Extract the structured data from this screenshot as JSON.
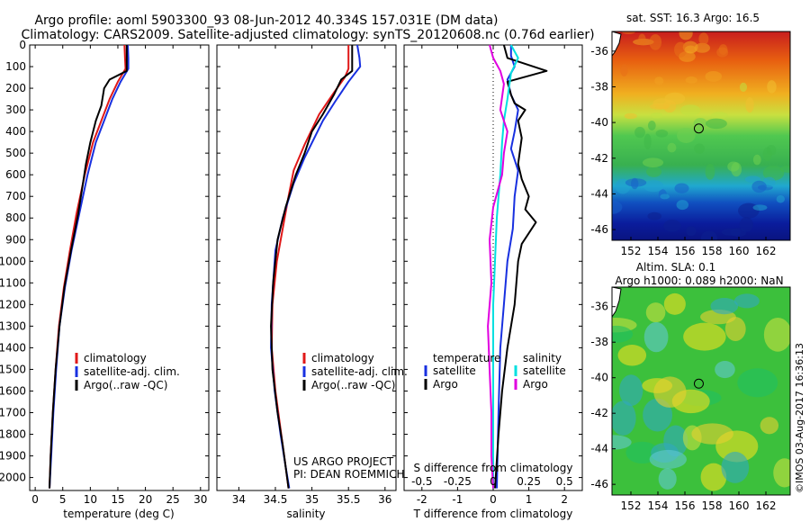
{
  "header": {
    "title_line1": "Argo profile: aoml 5903300_93 08-Jun-2012 40.334S 157.031E (DM data)",
    "title_line2": "Climatology: CARS2009. Satellite-adjusted climatology: synTS_20120608.nc (0.76d earlier)"
  },
  "colors": {
    "climatology": "#e01818",
    "satellite": "#1830e0",
    "argo": "#000000",
    "sat_s": "#00e0e0",
    "argo_s": "#e000e0"
  },
  "chart_data": [
    {
      "type": "line",
      "id": "temperature",
      "xlabel": "temperature (deg C)",
      "ylabel": "",
      "xlim": [
        -1,
        31.5
      ],
      "ylim": [
        2060,
        0
      ],
      "xticks": [
        "0",
        "5",
        "10",
        "15",
        "20",
        "25",
        "30"
      ],
      "xtick_values": [
        0,
        5,
        10,
        15,
        20,
        25,
        30
      ],
      "yticks": [
        0,
        100,
        200,
        300,
        400,
        500,
        600,
        700,
        800,
        900,
        1000,
        1100,
        1200,
        1300,
        1400,
        1500,
        1600,
        1700,
        1800,
        1900,
        2000
      ],
      "legend": [
        "climatology",
        "satellite-adj. clim.",
        "Argo(..raw -QC)"
      ],
      "legend_position": "lower-right",
      "series": [
        {
          "name": "climatology",
          "color": "#e01818",
          "points": [
            [
              16.2,
              0
            ],
            [
              16.3,
              60
            ],
            [
              16.4,
              110
            ],
            [
              15,
              170
            ],
            [
              13.5,
              250
            ],
            [
              12,
              350
            ],
            [
              10.5,
              450
            ],
            [
              9,
              600
            ],
            [
              7.5,
              780
            ],
            [
              6.3,
              950
            ],
            [
              5.2,
              1120
            ],
            [
              4.3,
              1300
            ],
            [
              3.7,
              1500
            ],
            [
              3.2,
              1700
            ],
            [
              2.8,
              1900
            ],
            [
              2.6,
              2050
            ]
          ]
        },
        {
          "name": "satellite-adj. clim.",
          "color": "#1830e0",
          "points": [
            [
              16.8,
              0
            ],
            [
              16.9,
              60
            ],
            [
              16.9,
              110
            ],
            [
              15.5,
              170
            ],
            [
              14,
              250
            ],
            [
              12.5,
              350
            ],
            [
              11,
              450
            ],
            [
              9.5,
              600
            ],
            [
              8,
              780
            ],
            [
              6.6,
              950
            ],
            [
              5.4,
              1120
            ],
            [
              4.4,
              1300
            ],
            [
              3.8,
              1500
            ],
            [
              3.3,
              1700
            ],
            [
              2.9,
              1900
            ],
            [
              2.6,
              2050
            ]
          ]
        },
        {
          "name": "Argo(..raw -QC)",
          "color": "#000000",
          "points": [
            [
              16.6,
              0
            ],
            [
              16.6,
              60
            ],
            [
              16.6,
              120
            ],
            [
              13.5,
              160
            ],
            [
              12.5,
              200
            ],
            [
              12,
              280
            ],
            [
              11,
              350
            ],
            [
              10,
              450
            ],
            [
              9.2,
              550
            ],
            [
              8.6,
              650
            ],
            [
              7.8,
              780
            ],
            [
              6.5,
              950
            ],
            [
              5.3,
              1120
            ],
            [
              4.4,
              1300
            ],
            [
              3.7,
              1500
            ],
            [
              3.2,
              1700
            ],
            [
              2.8,
              1900
            ],
            [
              2.6,
              2050
            ]
          ]
        }
      ]
    },
    {
      "type": "line",
      "id": "salinity",
      "xlabel": "salinity",
      "xlim": [
        33.7,
        36.15
      ],
      "ylim": [
        2060,
        0
      ],
      "xticks": [
        "34",
        "34.5",
        "35",
        "35.5",
        "36"
      ],
      "xtick_values": [
        34,
        34.5,
        35,
        35.5,
        36
      ],
      "legend": [
        "climatology",
        "satellite-adj. clim.",
        "Argo(..raw -QC)"
      ],
      "legend_position": "lower-right",
      "series": [
        {
          "name": "climatology",
          "color": "#e01818",
          "points": [
            [
              35.5,
              0
            ],
            [
              35.5,
              110
            ],
            [
              35.45,
              150
            ],
            [
              35.3,
              220
            ],
            [
              35.1,
              320
            ],
            [
              34.9,
              460
            ],
            [
              34.75,
              580
            ],
            [
              34.68,
              700
            ],
            [
              34.6,
              850
            ],
            [
              34.52,
              1000
            ],
            [
              34.46,
              1200
            ],
            [
              34.45,
              1400
            ],
            [
              34.5,
              1600
            ],
            [
              34.58,
              1800
            ],
            [
              34.64,
              1950
            ],
            [
              34.68,
              2050
            ]
          ]
        },
        {
          "name": "satellite-adj. clim.",
          "color": "#1830e0",
          "points": [
            [
              35.62,
              0
            ],
            [
              35.65,
              60
            ],
            [
              35.66,
              100
            ],
            [
              35.5,
              170
            ],
            [
              35.32,
              260
            ],
            [
              35.15,
              350
            ],
            [
              34.9,
              520
            ],
            [
              34.75,
              640
            ],
            [
              34.6,
              800
            ],
            [
              34.5,
              950
            ],
            [
              34.45,
              1200
            ],
            [
              34.44,
              1400
            ],
            [
              34.49,
              1600
            ],
            [
              34.57,
              1800
            ],
            [
              34.64,
              1950
            ],
            [
              34.69,
              2050
            ]
          ]
        },
        {
          "name": "Argo(..raw -QC)",
          "color": "#000000",
          "points": [
            [
              35.55,
              0
            ],
            [
              35.55,
              120
            ],
            [
              35.4,
              160
            ],
            [
              35.3,
              230
            ],
            [
              35.15,
              320
            ],
            [
              35.0,
              400
            ],
            [
              34.9,
              500
            ],
            [
              34.78,
              600
            ],
            [
              34.64,
              750
            ],
            [
              34.53,
              900
            ],
            [
              34.47,
              1100
            ],
            [
              34.44,
              1300
            ],
            [
              34.46,
              1500
            ],
            [
              34.53,
              1700
            ],
            [
              34.6,
              1850
            ],
            [
              34.66,
              2000
            ],
            [
              34.68,
              2050
            ]
          ]
        }
      ]
    },
    {
      "type": "line",
      "id": "difference",
      "xlabel": "T difference from climatology",
      "xlabel_top": "S difference from climatology",
      "xlim": [
        -2.5,
        2.5
      ],
      "ylim": [
        2060,
        0
      ],
      "xticks": [
        "-2",
        "-1",
        "0",
        "1",
        "2"
      ],
      "xtick_values": [
        -2,
        -1,
        0,
        1,
        2
      ],
      "s_ticks": [
        "-0.5",
        "-0.25",
        "0",
        "0.25",
        "0.5"
      ],
      "s_tick_values": [
        -2,
        -1,
        0,
        1,
        2
      ],
      "legend_left_title": "temperature",
      "legend_right_title": "salinity",
      "legend_left": [
        "satellite",
        "Argo"
      ],
      "legend_right": [
        "satellite",
        "Argo"
      ],
      "series": [
        {
          "name": "T satellite",
          "color": "#1830e0",
          "points": [
            [
              0.5,
              0
            ],
            [
              0.5,
              50
            ],
            [
              0.6,
              100
            ],
            [
              0.4,
              160
            ],
            [
              0.5,
              230
            ],
            [
              0.7,
              300
            ],
            [
              0.6,
              400
            ],
            [
              0.5,
              480
            ],
            [
              0.7,
              580
            ],
            [
              0.6,
              700
            ],
            [
              0.55,
              850
            ],
            [
              0.4,
              1000
            ],
            [
              0.3,
              1200
            ],
            [
              0.2,
              1400
            ],
            [
              0.15,
              1700
            ],
            [
              0.1,
              2050
            ]
          ]
        },
        {
          "name": "T Argo",
          "color": "#000000",
          "points": [
            [
              0.3,
              0
            ],
            [
              0.4,
              60
            ],
            [
              1.5,
              120
            ],
            [
              0.4,
              170
            ],
            [
              0.5,
              230
            ],
            [
              0.6,
              270
            ],
            [
              0.9,
              300
            ],
            [
              0.7,
              350
            ],
            [
              0.8,
              430
            ],
            [
              0.7,
              550
            ],
            [
              0.8,
              620
            ],
            [
              1.0,
              700
            ],
            [
              0.9,
              760
            ],
            [
              1.2,
              820
            ],
            [
              0.8,
              920
            ],
            [
              0.7,
              1000
            ],
            [
              0.6,
              1200
            ],
            [
              0.4,
              1400
            ],
            [
              0.25,
              1600
            ],
            [
              0.15,
              1800
            ],
            [
              0.05,
              2050
            ]
          ]
        },
        {
          "name": "S satellite",
          "color": "#00e0e0",
          "points": [
            [
              0.5,
              0
            ],
            [
              0.7,
              60
            ],
            [
              0.5,
              130
            ],
            [
              0.4,
              250
            ],
            [
              0.3,
              350
            ],
            [
              0.25,
              450
            ],
            [
              0.2,
              600
            ],
            [
              0.1,
              800
            ],
            [
              0.05,
              1000
            ],
            [
              0,
              1200
            ],
            [
              0,
              1500
            ],
            [
              0,
              1800
            ],
            [
              0,
              2050
            ]
          ]
        },
        {
          "name": "S Argo",
          "color": "#e000e0",
          "points": [
            [
              -0.1,
              0
            ],
            [
              0.0,
              60
            ],
            [
              0.2,
              120
            ],
            [
              0.3,
              180
            ],
            [
              0.2,
              300
            ],
            [
              0.4,
              400
            ],
            [
              0.3,
              500
            ],
            [
              0.25,
              600
            ],
            [
              0.0,
              750
            ],
            [
              -0.1,
              900
            ],
            [
              -0.05,
              1100
            ],
            [
              -0.15,
              1300
            ],
            [
              -0.1,
              1500
            ],
            [
              -0.05,
              1700
            ],
            [
              -0.05,
              1900
            ],
            [
              0,
              2050
            ]
          ]
        }
      ]
    }
  ],
  "footer_text": {
    "line1": "US ARGO PROJECT",
    "line2": "PI: DEAN ROEMMICH"
  },
  "maps": {
    "sst": {
      "title": "sat. SST: 16.3 Argo: 16.5",
      "lat_ticks": [
        "-36",
        "-38",
        "-40",
        "-42",
        "-44",
        "-46"
      ],
      "lon_ticks": [
        "152",
        "154",
        "156",
        "158",
        "160",
        "162"
      ],
      "marker_lon": 157.031,
      "marker_lat": -40.334
    },
    "sla": {
      "title_line1": "Altim. SLA: 0.1",
      "title_line2": "Argo h1000: 0.089 h2000: NaN",
      "lat_ticks": [
        "-36",
        "-38",
        "-40",
        "-42",
        "-44",
        "-46"
      ],
      "lon_ticks": [
        "152",
        "154",
        "156",
        "158",
        "160",
        "162"
      ],
      "marker_lon": 157.031,
      "marker_lat": -40.334
    }
  },
  "credit": "©IMOS 03-Aug-2017 16:36:13"
}
